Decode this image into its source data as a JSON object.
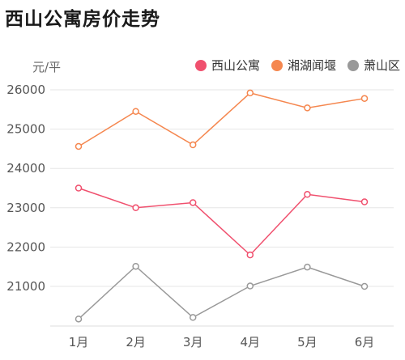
{
  "title": "西山公寓房价走势",
  "chart_data": {
    "type": "line",
    "ylabel": "元/平",
    "categories": [
      "1月",
      "2月",
      "3月",
      "4月",
      "5月",
      "6月"
    ],
    "ylim": [
      20000,
      26000
    ],
    "yticks": [
      21000,
      22000,
      23000,
      24000,
      25000,
      26000
    ],
    "grid": true,
    "legend_position": "top-right",
    "series": [
      {
        "name": "西山公寓",
        "color": "#f0506e",
        "values": [
          23500,
          23000,
          23130,
          21800,
          23340,
          23150
        ]
      },
      {
        "name": "湘湖闻堰",
        "color": "#f5874f",
        "values": [
          24560,
          25450,
          24600,
          25920,
          25540,
          25780
        ]
      },
      {
        "name": "萧山区",
        "color": "#999999",
        "values": [
          20170,
          21510,
          20210,
          21010,
          21490,
          21000
        ]
      }
    ]
  }
}
